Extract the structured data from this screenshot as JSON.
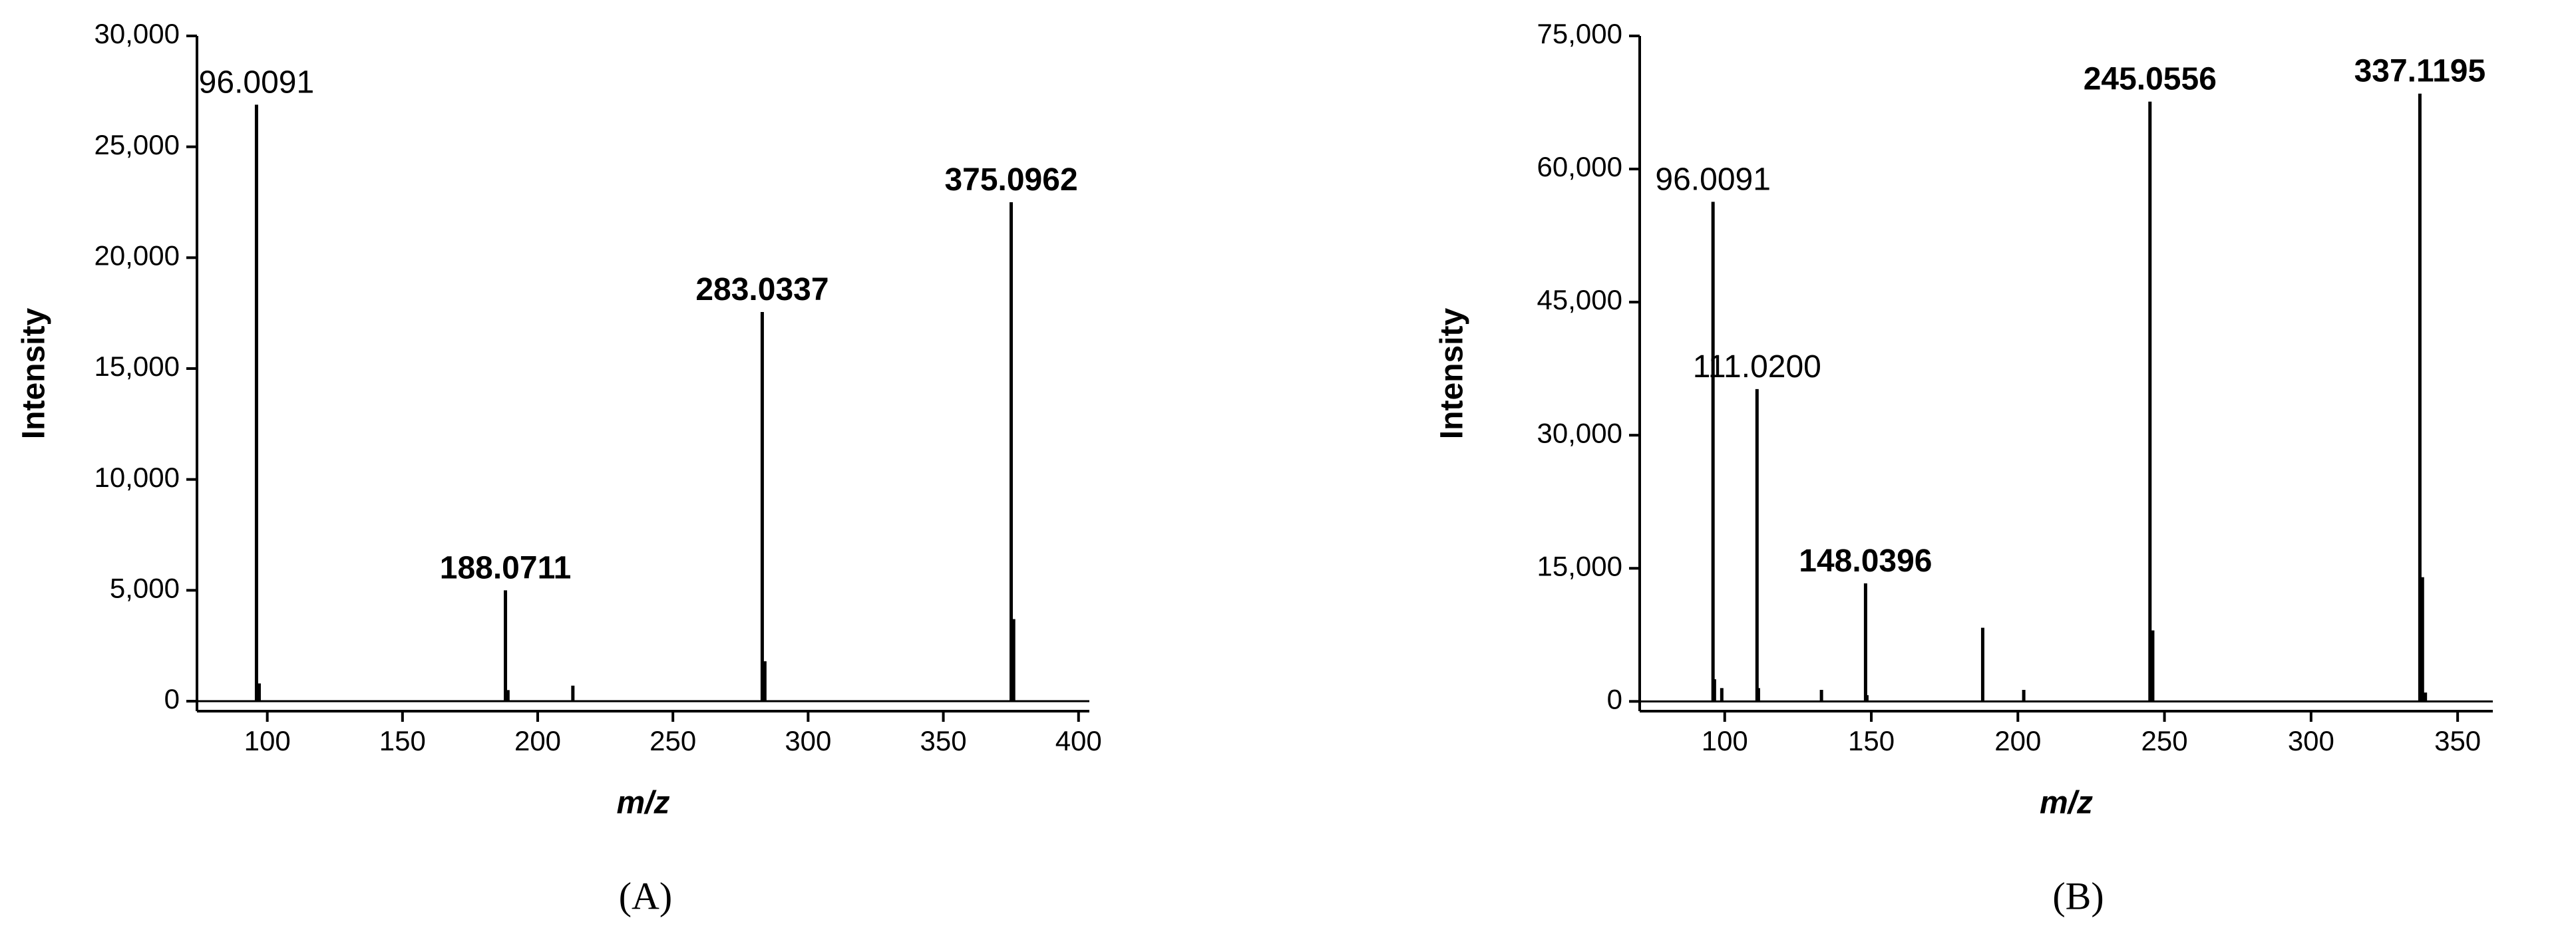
{
  "chart_data": [
    {
      "type": "bar",
      "panel_label": "(A)",
      "x_label": "m/z",
      "y_label": "Intensity",
      "color": "#000000",
      "x": [
        96.0091,
        97,
        188.0711,
        189,
        213,
        283.0337,
        284,
        375.0962,
        376
      ],
      "values": [
        26900,
        800,
        5000,
        500,
        700,
        17550,
        1800,
        22500,
        3700
      ],
      "peak_labels": [
        "96.0091",
        null,
        "188.0711",
        null,
        null,
        "283.0337",
        null,
        "375.0962",
        null
      ],
      "label_bold": [
        false,
        null,
        true,
        null,
        null,
        true,
        null,
        true,
        null
      ],
      "xlim": [
        74,
        404
      ],
      "ylim": [
        -450,
        30000
      ],
      "xticks": [
        100,
        150,
        200,
        250,
        300,
        350,
        400
      ],
      "yticks": [
        0,
        {
          "value": 5000,
          "label": "5,000"
        },
        {
          "value": 10000,
          "label": "10,000"
        },
        {
          "value": 15000,
          "label": "15,000"
        },
        {
          "value": 20000,
          "label": "20,000"
        },
        {
          "value": 25000,
          "label": "25,000"
        },
        {
          "value": 30000,
          "label": "30,000"
        }
      ]
    },
    {
      "type": "bar",
      "panel_label": "(B)",
      "x_label": "m/z",
      "y_label": "Intensity",
      "color": "#000000",
      "x": [
        96.0091,
        96.5,
        99,
        111.02,
        111.5,
        133,
        148.0396,
        148.5,
        188,
        202,
        245.0556,
        246,
        337.1195,
        338,
        339
      ],
      "values": [
        56300,
        2500,
        1500,
        35200,
        1500,
        1300,
        13300,
        700,
        8300,
        1300,
        67600,
        8000,
        68500,
        14000,
        1000
      ],
      "peak_labels": [
        "96.0091",
        null,
        null,
        "111.0200",
        null,
        null,
        "148.0396",
        null,
        null,
        null,
        "245.0556",
        null,
        "337.1195",
        null,
        null
      ],
      "label_bold": [
        false,
        null,
        null,
        false,
        null,
        null,
        true,
        null,
        null,
        null,
        true,
        null,
        true,
        null,
        null
      ],
      "xlim": [
        71,
        362
      ],
      "ylim": [
        -1100,
        75000
      ],
      "xticks": [
        100,
        150,
        200,
        250,
        300,
        350
      ],
      "yticks": [
        0,
        {
          "value": 15000,
          "label": "15,000"
        },
        {
          "value": 30000,
          "label": "30,000"
        },
        {
          "value": 45000,
          "label": "45,000"
        },
        {
          "value": 60000,
          "label": "60,000"
        },
        {
          "value": 75000,
          "label": "75,000"
        }
      ]
    }
  ]
}
